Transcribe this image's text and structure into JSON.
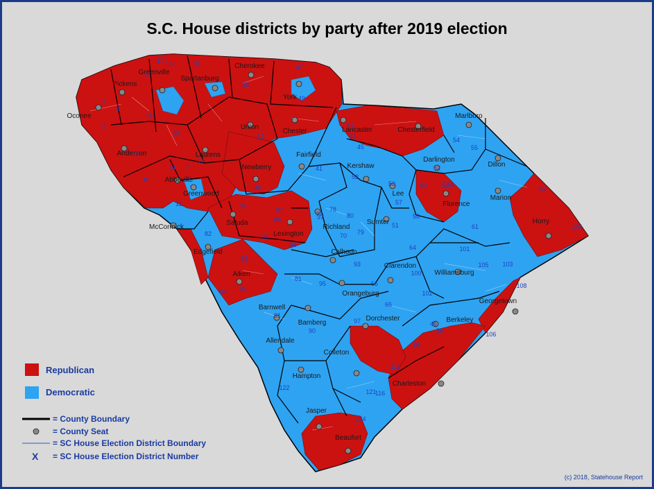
{
  "title": "S.C. House districts by party after 2019 election",
  "colors": {
    "republican": "#cc1111",
    "democratic": "#2ea3f2",
    "background": "#d9d9d9",
    "border": "#1a3a8a"
  },
  "legend": {
    "republican": "Republican",
    "democratic": "Democratic",
    "county_boundary": "= County Boundary",
    "county_seat": "= County Seat",
    "district_boundary": "= SC House Election District Boundary",
    "district_number_symbol": "X",
    "district_number": "= SC House Election District Number"
  },
  "credit": "(c) 2018, Statehouse Report",
  "counties": [
    "Oconee",
    "Pickens",
    "Greenville",
    "Spartanburg",
    "Cherokee",
    "York",
    "Anderson",
    "Laurens",
    "Union",
    "Chester",
    "Lancaster",
    "Chesterfield",
    "Marlboro",
    "Abbeville",
    "Greenwood",
    "Newberry",
    "Fairfield",
    "Kershaw",
    "Darlington",
    "Dillon",
    "McCormick",
    "Saluda",
    "Lexington",
    "Richland",
    "Lee",
    "Florence",
    "Marion",
    "Horry",
    "Edgefield",
    "Aiken",
    "Calhoun",
    "Sumter",
    "Clarendon",
    "Williamsburg",
    "Georgetown",
    "Orangeburg",
    "Barnwell",
    "Bamberg",
    "Allendale",
    "Dorchester",
    "Berkeley",
    "Colleton",
    "Hampton",
    "Charleston",
    "Jasper",
    "Beaufort"
  ],
  "district_numbers": [
    "17",
    "4",
    "16",
    "18",
    "33",
    "47",
    "1",
    "3",
    "2",
    "11",
    "10",
    "8",
    "7",
    "24",
    "23",
    "14",
    "13",
    "12",
    "42",
    "41",
    "43",
    "44",
    "45",
    "65",
    "53",
    "54",
    "55",
    "52",
    "62",
    "61",
    "60",
    "59",
    "50",
    "57",
    "51",
    "39",
    "40",
    "88",
    "87",
    "82",
    "84",
    "81",
    "77",
    "78",
    "80",
    "79",
    "70",
    "93",
    "91",
    "95",
    "90",
    "64",
    "101",
    "102",
    "103",
    "108",
    "98",
    "97",
    "66",
    "105",
    "100",
    "114",
    "116",
    "121",
    "122",
    "124",
    "106",
    "104",
    "56",
    "58",
    "73",
    "26",
    "29",
    "46",
    "49",
    "86",
    "96",
    "37"
  ]
}
